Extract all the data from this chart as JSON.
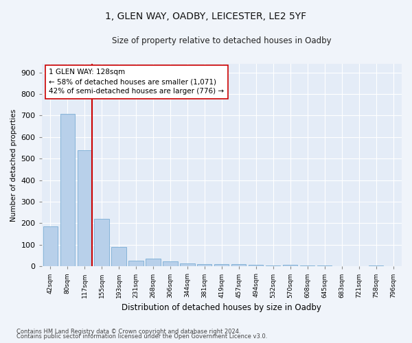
{
  "title1": "1, GLEN WAY, OADBY, LEICESTER, LE2 5YF",
  "title2": "Size of property relative to detached houses in Oadby",
  "xlabel": "Distribution of detached houses by size in Oadby",
  "ylabel": "Number of detached properties",
  "categories": [
    "42sqm",
    "80sqm",
    "117sqm",
    "155sqm",
    "193sqm",
    "231sqm",
    "268sqm",
    "306sqm",
    "344sqm",
    "381sqm",
    "419sqm",
    "457sqm",
    "494sqm",
    "532sqm",
    "570sqm",
    "608sqm",
    "645sqm",
    "683sqm",
    "721sqm",
    "758sqm",
    "796sqm"
  ],
  "values": [
    185,
    707,
    538,
    220,
    90,
    27,
    35,
    22,
    13,
    10,
    10,
    10,
    6,
    5,
    7,
    5,
    5,
    2,
    0,
    5,
    2
  ],
  "bar_color": "#b8d0ea",
  "bar_edge_color": "#7aadd4",
  "property_line_bar_index": 2,
  "property_line_color": "#cc0000",
  "annotation_text": "1 GLEN WAY: 128sqm\n← 58% of detached houses are smaller (1,071)\n42% of semi-detached houses are larger (776) →",
  "annotation_box_color": "#ffffff",
  "annotation_box_edge": "#cc0000",
  "ylim": [
    0,
    940
  ],
  "yticks": [
    0,
    100,
    200,
    300,
    400,
    500,
    600,
    700,
    800,
    900
  ],
  "footer1": "Contains HM Land Registry data © Crown copyright and database right 2024.",
  "footer2": "Contains public sector information licensed under the Open Government Licence v3.0.",
  "bg_color": "#f0f4fa",
  "plot_bg_color": "#e4ecf7",
  "title1_fontsize": 10,
  "title2_fontsize": 8.5,
  "annotation_fontsize": 7.5,
  "ylabel_fontsize": 7.5,
  "xlabel_fontsize": 8.5
}
